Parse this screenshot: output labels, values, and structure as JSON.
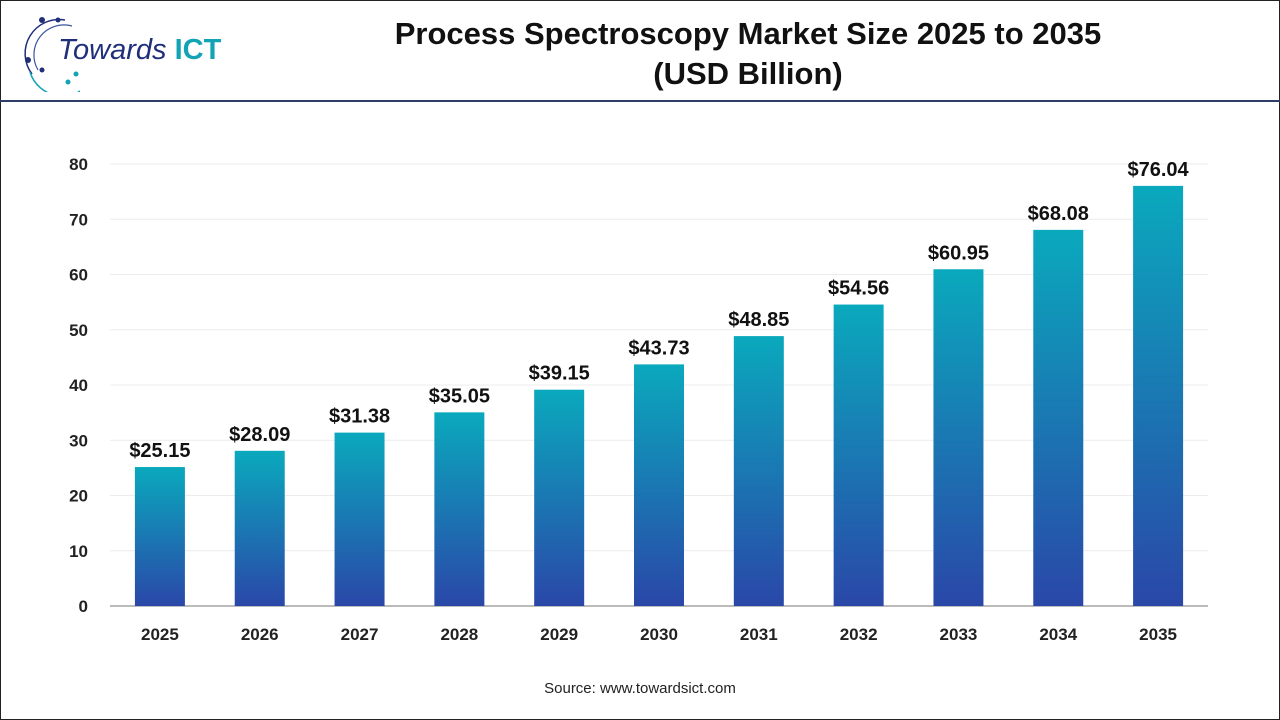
{
  "brand": {
    "logo_text_main": "Towards",
    "logo_text_accent": "ICT"
  },
  "chart_data": {
    "type": "bar",
    "title": "Process Spectroscopy Market Size 2025 to 2035",
    "subtitle": "(USD Billion)",
    "categories": [
      "2025",
      "2026",
      "2027",
      "2028",
      "2029",
      "2030",
      "2031",
      "2032",
      "2033",
      "2034",
      "2035"
    ],
    "values": [
      25.15,
      28.09,
      31.38,
      35.05,
      39.15,
      43.73,
      48.85,
      54.56,
      60.95,
      68.08,
      76.04
    ],
    "data_labels": [
      "$25.15",
      "$28.09",
      "$31.38",
      "$35.05",
      "$39.15",
      "$43.73",
      "$48.85",
      "$54.56",
      "$60.95",
      "$68.08",
      "$76.04"
    ],
    "yticks": [
      0,
      10,
      20,
      30,
      40,
      50,
      60,
      70,
      80
    ],
    "ylim": [
      0,
      80
    ],
    "xlabel": "",
    "ylabel": "",
    "grid": true,
    "colors": {
      "bar_top": "#0aa9bd",
      "bar_bottom": "#2a47a8",
      "grid": "#ececec",
      "axis": "#bbbbbb"
    }
  },
  "source": "Source: www.towardsict.com"
}
